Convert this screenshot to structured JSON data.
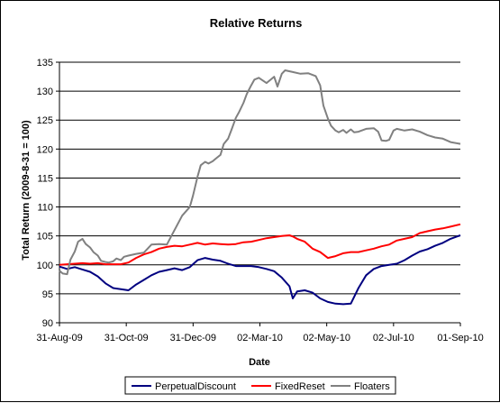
{
  "chart_data": {
    "type": "line",
    "title": "Relative Returns",
    "xlabel": "Date",
    "ylabel": "Total Return (2009-8-31 = 100)",
    "ylim": [
      90,
      135
    ],
    "yticks": [
      90,
      95,
      100,
      105,
      110,
      115,
      120,
      125,
      130,
      135
    ],
    "x_range": [
      "2009-08-31",
      "2010-09-01"
    ],
    "xticks": [
      {
        "date": "2009-08-31",
        "label": "31-Aug-09"
      },
      {
        "date": "2009-10-31",
        "label": "31-Oct-09"
      },
      {
        "date": "2009-12-31",
        "label": "31-Dec-09"
      },
      {
        "date": "2010-03-02",
        "label": "02-Mar-10"
      },
      {
        "date": "2010-05-02",
        "label": "02-May-10"
      },
      {
        "date": "2010-07-02",
        "label": "02-Jul-10"
      },
      {
        "date": "2010-09-01",
        "label": "01-Sep-10"
      }
    ],
    "grid": "horizontal",
    "legend_position": "bottom",
    "series": [
      {
        "name": "PerpetualDiscount",
        "color": "#000080",
        "points": [
          [
            "2009-08-31",
            99.7
          ],
          [
            "2009-09-07",
            99.3
          ],
          [
            "2009-09-14",
            99.6
          ],
          [
            "2009-09-21",
            99.2
          ],
          [
            "2009-09-28",
            98.8
          ],
          [
            "2009-10-05",
            98.0
          ],
          [
            "2009-10-12",
            96.8
          ],
          [
            "2009-10-19",
            96.0
          ],
          [
            "2009-10-26",
            95.8
          ],
          [
            "2009-11-02",
            95.6
          ],
          [
            "2009-11-09",
            96.6
          ],
          [
            "2009-11-16",
            97.4
          ],
          [
            "2009-11-23",
            98.2
          ],
          [
            "2009-11-30",
            98.8
          ],
          [
            "2009-12-07",
            99.1
          ],
          [
            "2009-12-14",
            99.4
          ],
          [
            "2009-12-21",
            99.1
          ],
          [
            "2009-12-28",
            99.6
          ],
          [
            "2010-01-04",
            100.8
          ],
          [
            "2010-01-11",
            101.2
          ],
          [
            "2010-01-18",
            100.9
          ],
          [
            "2010-01-25",
            100.7
          ],
          [
            "2010-02-01",
            100.2
          ],
          [
            "2010-02-08",
            99.8
          ],
          [
            "2010-02-15",
            99.8
          ],
          [
            "2010-02-22",
            99.8
          ],
          [
            "2010-03-01",
            99.6
          ],
          [
            "2010-03-08",
            99.3
          ],
          [
            "2010-03-15",
            98.9
          ],
          [
            "2010-03-22",
            97.8
          ],
          [
            "2010-03-29",
            96.3
          ],
          [
            "2010-04-01",
            94.2
          ],
          [
            "2010-04-05",
            95.4
          ],
          [
            "2010-04-12",
            95.6
          ],
          [
            "2010-04-19",
            95.2
          ],
          [
            "2010-04-26",
            94.2
          ],
          [
            "2010-05-03",
            93.6
          ],
          [
            "2010-05-10",
            93.3
          ],
          [
            "2010-05-17",
            93.2
          ],
          [
            "2010-05-24",
            93.3
          ],
          [
            "2010-05-31",
            96.0
          ],
          [
            "2010-06-07",
            98.2
          ],
          [
            "2010-06-14",
            99.3
          ],
          [
            "2010-06-21",
            99.8
          ],
          [
            "2010-06-28",
            100.0
          ],
          [
            "2010-07-05",
            100.2
          ],
          [
            "2010-07-12",
            100.8
          ],
          [
            "2010-07-19",
            101.6
          ],
          [
            "2010-07-26",
            102.3
          ],
          [
            "2010-08-02",
            102.7
          ],
          [
            "2010-08-09",
            103.3
          ],
          [
            "2010-08-16",
            103.8
          ],
          [
            "2010-08-23",
            104.5
          ],
          [
            "2010-09-01",
            105.1
          ]
        ]
      },
      {
        "name": "FixedReset",
        "color": "#ff0000",
        "points": [
          [
            "2009-08-31",
            100.0
          ],
          [
            "2009-09-07",
            100.1
          ],
          [
            "2009-09-14",
            100.2
          ],
          [
            "2009-09-21",
            100.3
          ],
          [
            "2009-09-28",
            100.2
          ],
          [
            "2009-10-05",
            100.3
          ],
          [
            "2009-10-12",
            100.1
          ],
          [
            "2009-10-19",
            100.1
          ],
          [
            "2009-10-26",
            100.1
          ],
          [
            "2009-11-02",
            100.4
          ],
          [
            "2009-11-09",
            101.2
          ],
          [
            "2009-11-16",
            101.8
          ],
          [
            "2009-11-23",
            102.2
          ],
          [
            "2009-11-30",
            102.8
          ],
          [
            "2009-12-07",
            103.1
          ],
          [
            "2009-12-14",
            103.3
          ],
          [
            "2009-12-21",
            103.2
          ],
          [
            "2009-12-28",
            103.5
          ],
          [
            "2010-01-04",
            103.8
          ],
          [
            "2010-01-11",
            103.5
          ],
          [
            "2010-01-18",
            103.7
          ],
          [
            "2010-01-25",
            103.6
          ],
          [
            "2010-02-01",
            103.5
          ],
          [
            "2010-02-08",
            103.6
          ],
          [
            "2010-02-15",
            103.9
          ],
          [
            "2010-02-22",
            104.0
          ],
          [
            "2010-03-01",
            104.3
          ],
          [
            "2010-03-08",
            104.6
          ],
          [
            "2010-03-15",
            104.8
          ],
          [
            "2010-03-22",
            105.0
          ],
          [
            "2010-03-29",
            105.1
          ],
          [
            "2010-04-01",
            104.9
          ],
          [
            "2010-04-05",
            104.5
          ],
          [
            "2010-04-12",
            104.0
          ],
          [
            "2010-04-19",
            102.8
          ],
          [
            "2010-04-26",
            102.2
          ],
          [
            "2010-05-03",
            101.2
          ],
          [
            "2010-05-10",
            101.5
          ],
          [
            "2010-05-17",
            102.0
          ],
          [
            "2010-05-24",
            102.2
          ],
          [
            "2010-05-31",
            102.2
          ],
          [
            "2010-06-07",
            102.5
          ],
          [
            "2010-06-14",
            102.8
          ],
          [
            "2010-06-21",
            103.2
          ],
          [
            "2010-06-28",
            103.5
          ],
          [
            "2010-07-05",
            104.2
          ],
          [
            "2010-07-12",
            104.5
          ],
          [
            "2010-07-19",
            104.8
          ],
          [
            "2010-07-26",
            105.5
          ],
          [
            "2010-08-02",
            105.8
          ],
          [
            "2010-08-09",
            106.1
          ],
          [
            "2010-08-16",
            106.3
          ],
          [
            "2010-08-23",
            106.6
          ],
          [
            "2010-09-01",
            107.0
          ]
        ]
      },
      {
        "name": "Floaters",
        "color": "#808080",
        "points": [
          [
            "2009-08-31",
            99.0
          ],
          [
            "2009-09-03",
            98.5
          ],
          [
            "2009-09-07",
            98.4
          ],
          [
            "2009-09-10",
            100.9
          ],
          [
            "2009-09-14",
            102.3
          ],
          [
            "2009-09-17",
            104.0
          ],
          [
            "2009-09-21",
            104.5
          ],
          [
            "2009-09-24",
            103.6
          ],
          [
            "2009-09-28",
            103.0
          ],
          [
            "2009-10-01",
            102.2
          ],
          [
            "2009-10-05",
            101.6
          ],
          [
            "2009-10-08",
            100.7
          ],
          [
            "2009-10-12",
            100.5
          ],
          [
            "2009-10-15",
            100.4
          ],
          [
            "2009-10-19",
            100.6
          ],
          [
            "2009-10-22",
            101.1
          ],
          [
            "2009-10-26",
            100.8
          ],
          [
            "2009-10-29",
            101.4
          ],
          [
            "2009-11-02",
            101.6
          ],
          [
            "2009-11-09",
            101.9
          ],
          [
            "2009-11-16",
            102.1
          ],
          [
            "2009-11-23",
            103.5
          ],
          [
            "2009-11-30",
            103.6
          ],
          [
            "2009-12-07",
            103.5
          ],
          [
            "2009-12-14",
            106.0
          ],
          [
            "2009-12-21",
            108.5
          ],
          [
            "2009-12-28",
            110.0
          ],
          [
            "2009-12-31",
            112.0
          ],
          [
            "2010-01-04",
            115.2
          ],
          [
            "2010-01-07",
            117.2
          ],
          [
            "2010-01-11",
            117.8
          ],
          [
            "2010-01-14",
            117.5
          ],
          [
            "2010-01-18",
            117.9
          ],
          [
            "2010-01-21",
            118.4
          ],
          [
            "2010-01-25",
            119.0
          ],
          [
            "2010-01-28",
            120.9
          ],
          [
            "2010-02-01",
            121.8
          ],
          [
            "2010-02-04",
            123.3
          ],
          [
            "2010-02-08",
            125.4
          ],
          [
            "2010-02-11",
            126.4
          ],
          [
            "2010-02-15",
            128.0
          ],
          [
            "2010-02-18",
            129.5
          ],
          [
            "2010-02-22",
            131.0
          ],
          [
            "2010-02-25",
            132.0
          ],
          [
            "2010-03-01",
            132.3
          ],
          [
            "2010-03-08",
            131.4
          ],
          [
            "2010-03-15",
            132.5
          ],
          [
            "2010-03-18",
            130.8
          ],
          [
            "2010-03-22",
            133.0
          ],
          [
            "2010-03-25",
            133.6
          ],
          [
            "2010-04-01",
            133.3
          ],
          [
            "2010-04-08",
            133.0
          ],
          [
            "2010-04-15",
            133.1
          ],
          [
            "2010-04-22",
            132.6
          ],
          [
            "2010-04-26",
            131.0
          ],
          [
            "2010-04-29",
            127.5
          ],
          [
            "2010-05-03",
            125.3
          ],
          [
            "2010-05-06",
            124.0
          ],
          [
            "2010-05-10",
            123.2
          ],
          [
            "2010-05-13",
            122.9
          ],
          [
            "2010-05-17",
            123.3
          ],
          [
            "2010-05-20",
            122.8
          ],
          [
            "2010-05-24",
            123.4
          ],
          [
            "2010-05-27",
            122.9
          ],
          [
            "2010-05-31",
            123.0
          ],
          [
            "2010-06-07",
            123.5
          ],
          [
            "2010-06-14",
            123.6
          ],
          [
            "2010-06-18",
            123.0
          ],
          [
            "2010-06-21",
            121.5
          ],
          [
            "2010-06-25",
            121.4
          ],
          [
            "2010-06-28",
            121.6
          ],
          [
            "2010-07-02",
            123.2
          ],
          [
            "2010-07-05",
            123.5
          ],
          [
            "2010-07-12",
            123.2
          ],
          [
            "2010-07-19",
            123.4
          ],
          [
            "2010-07-26",
            123.0
          ],
          [
            "2010-08-02",
            122.4
          ],
          [
            "2010-08-09",
            122.0
          ],
          [
            "2010-08-16",
            121.8
          ],
          [
            "2010-08-23",
            121.2
          ],
          [
            "2010-09-01",
            120.9
          ]
        ]
      }
    ]
  }
}
